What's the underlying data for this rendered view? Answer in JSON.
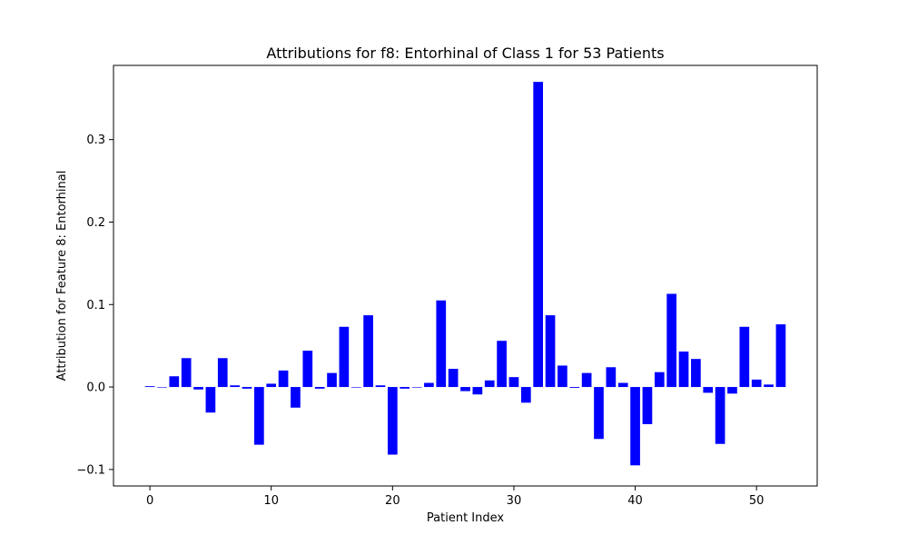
{
  "chart_data": {
    "type": "bar",
    "title": "Attributions for f8: Entorhinal of Class 1 for 53 Patients",
    "xlabel": "Patient Index",
    "ylabel": "Attribution for Feature 8: Entorhinal",
    "bar_color": "#0000ff",
    "xlim": [
      -3,
      55
    ],
    "ylim": [
      -0.12,
      0.39
    ],
    "xticks": [
      0,
      10,
      20,
      30,
      40,
      50
    ],
    "xtick_labels": [
      "0",
      "10",
      "20",
      "30",
      "40",
      "50"
    ],
    "yticks": [
      -0.1,
      0.0,
      0.1,
      0.2,
      0.3
    ],
    "ytick_labels": [
      "−0.1",
      "0.0",
      "0.1",
      "0.2",
      "0.3"
    ],
    "grid": false,
    "x": [
      0,
      1,
      2,
      3,
      4,
      5,
      6,
      7,
      8,
      9,
      10,
      11,
      12,
      13,
      14,
      15,
      16,
      17,
      18,
      19,
      20,
      21,
      22,
      23,
      24,
      25,
      26,
      27,
      28,
      29,
      30,
      31,
      32,
      33,
      34,
      35,
      36,
      37,
      38,
      39,
      40,
      41,
      42,
      43,
      44,
      45,
      46,
      47,
      48,
      49,
      50,
      51,
      52
    ],
    "values": [
      0.001,
      0.0,
      0.013,
      0.035,
      -0.003,
      -0.031,
      0.035,
      0.002,
      -0.002,
      -0.07,
      0.004,
      0.02,
      -0.025,
      0.044,
      -0.002,
      0.017,
      0.073,
      0.0,
      0.087,
      0.002,
      -0.082,
      -0.002,
      0.0,
      0.005,
      0.105,
      0.022,
      -0.005,
      -0.009,
      0.008,
      0.056,
      0.012,
      -0.019,
      0.37,
      0.087,
      0.026,
      -0.001,
      0.017,
      -0.063,
      0.024,
      0.005,
      -0.095,
      -0.045,
      0.018,
      0.113,
      0.043,
      0.034,
      -0.007,
      -0.069,
      -0.008,
      0.073,
      0.009,
      0.003,
      0.076
    ]
  }
}
